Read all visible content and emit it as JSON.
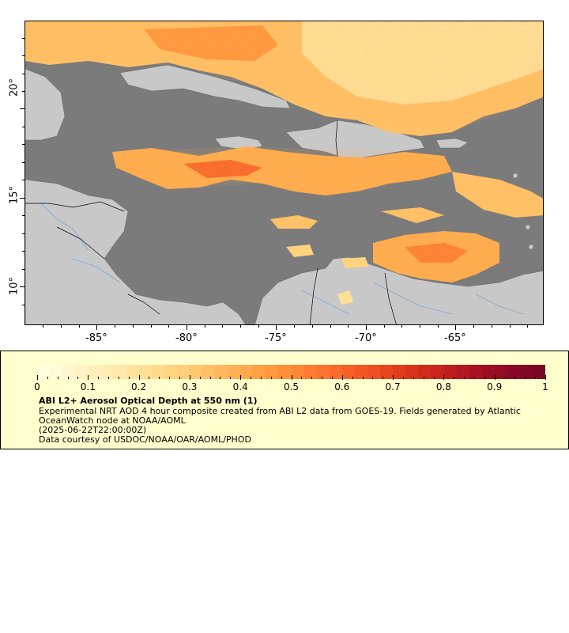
{
  "map": {
    "lon_labels": [
      "-85°",
      "-80°",
      "-75°",
      "-70°",
      "-65°"
    ],
    "lat_labels": [
      "20°",
      "15°",
      "10°"
    ],
    "colors": {
      "ocean": "#7b7b7b",
      "land": "#c8c8c8",
      "rivers": "#7aa6d8",
      "borders": "#000000"
    }
  },
  "legend": {
    "colorbar_ticks": [
      "0",
      "0.1",
      "0.2",
      "0.3",
      "0.4",
      "0.5",
      "0.6",
      "0.7",
      "0.8",
      "0.9",
      "1"
    ],
    "colorbar_colors": [
      "#ffffe0",
      "#fff5c8",
      "#ffebb0",
      "#ffe098",
      "#ffd27e",
      "#ffc066",
      "#ffac4e",
      "#ff963e",
      "#fd7e32",
      "#f86628",
      "#ee4e20",
      "#de361c",
      "#c6221c",
      "#aa1220",
      "#8c0a24",
      "#780624"
    ],
    "title": "ABI L2+ Aerosol Optical Depth at 550 nm (1)",
    "description": "Experimental NRT AOD 4 hour composite created from ABI L2 data from GOES-19. Fields generated by Atlantic OceanWatch node at NOAA/AOML",
    "timestamp": "(2025-06-22T22:00:00Z)",
    "credit": "Data courtesy of USDOC/NOAA/OAR/AOML/PHOD"
  }
}
